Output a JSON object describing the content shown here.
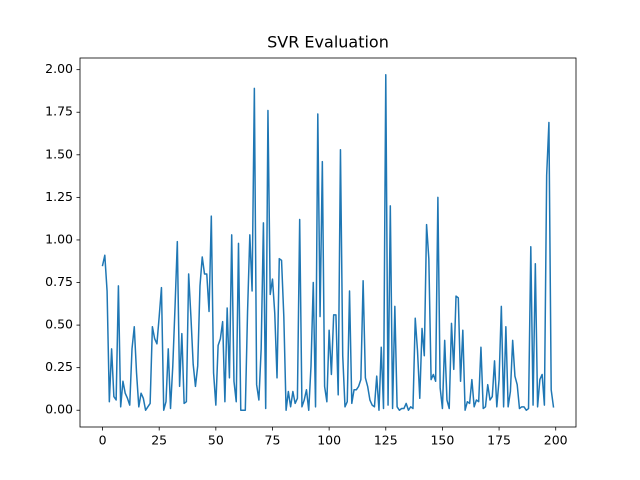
{
  "chart_data": {
    "type": "line",
    "title": "SVR Evaluation",
    "x": [
      0,
      1,
      2,
      3,
      4,
      5,
      6,
      7,
      8,
      9,
      10,
      11,
      12,
      13,
      14,
      15,
      16,
      17,
      18,
      19,
      20,
      21,
      22,
      23,
      24,
      25,
      26,
      27,
      28,
      29,
      30,
      31,
      32,
      33,
      34,
      35,
      36,
      37,
      38,
      39,
      40,
      41,
      42,
      43,
      44,
      45,
      46,
      47,
      48,
      49,
      50,
      51,
      52,
      53,
      54,
      55,
      56,
      57,
      58,
      59,
      60,
      61,
      62,
      63,
      64,
      65,
      66,
      67,
      68,
      69,
      70,
      71,
      72,
      73,
      74,
      75,
      76,
      77,
      78,
      79,
      80,
      81,
      82,
      83,
      84,
      85,
      86,
      87,
      88,
      89,
      90,
      91,
      92,
      93,
      94,
      95,
      96,
      97,
      98,
      99,
      100,
      101,
      102,
      103,
      104,
      105,
      106,
      107,
      108,
      109,
      110,
      111,
      112,
      113,
      114,
      115,
      116,
      117,
      118,
      119,
      120,
      121,
      122,
      123,
      124,
      125,
      126,
      127,
      128,
      129,
      130,
      131,
      132,
      133,
      134,
      135,
      136,
      137,
      138,
      139,
      140,
      141,
      142,
      143,
      144,
      145,
      146,
      147,
      148,
      149,
      150,
      151,
      152,
      153,
      154,
      155,
      156,
      157,
      158,
      159,
      160,
      161,
      162,
      163,
      164,
      165,
      166,
      167,
      168,
      169,
      170,
      171,
      172,
      173,
      174,
      175,
      176,
      177,
      178,
      179,
      180,
      181,
      182,
      183,
      184,
      185,
      186,
      187,
      188,
      189,
      190,
      191,
      192,
      193,
      194,
      195,
      196,
      197,
      198,
      199
    ],
    "series": [
      {
        "color": "#1f77b4",
        "values": [
          0.85,
          0.91,
          0.7,
          0.05,
          0.36,
          0.08,
          0.06,
          0.73,
          0.02,
          0.17,
          0.1,
          0.07,
          0.03,
          0.36,
          0.49,
          0.22,
          0.02,
          0.1,
          0.07,
          0.0,
          0.02,
          0.04,
          0.49,
          0.42,
          0.39,
          0.55,
          0.72,
          0.0,
          0.05,
          0.36,
          0.01,
          0.26,
          0.61,
          0.99,
          0.14,
          0.45,
          0.04,
          0.05,
          0.8,
          0.55,
          0.27,
          0.14,
          0.26,
          0.73,
          0.9,
          0.8,
          0.8,
          0.58,
          1.14,
          0.22,
          0.03,
          0.38,
          0.42,
          0.52,
          0.05,
          0.6,
          0.19,
          1.03,
          0.17,
          0.05,
          0.98,
          0.0,
          0.0,
          0.0,
          0.58,
          1.03,
          0.7,
          1.89,
          0.15,
          0.06,
          0.36,
          1.1,
          0.01,
          1.76,
          0.68,
          0.77,
          0.57,
          0.19,
          0.89,
          0.88,
          0.55,
          0.0,
          0.11,
          0.02,
          0.11,
          0.04,
          0.07,
          1.12,
          0.02,
          0.06,
          0.12,
          0.0,
          0.26,
          0.75,
          0.02,
          1.74,
          0.55,
          1.46,
          0.14,
          0.05,
          0.47,
          0.21,
          0.56,
          0.56,
          0.09,
          1.53,
          0.32,
          0.02,
          0.05,
          0.7,
          0.04,
          0.12,
          0.12,
          0.14,
          0.18,
          0.76,
          0.19,
          0.14,
          0.06,
          0.03,
          0.02,
          0.2,
          0.0,
          0.37,
          0.01,
          1.97,
          0.03,
          1.2,
          0.01,
          0.61,
          0.02,
          0.0,
          0.01,
          0.01,
          0.04,
          0.0,
          0.02,
          0.01,
          0.54,
          0.35,
          0.07,
          0.48,
          0.32,
          1.09,
          0.89,
          0.18,
          0.21,
          0.17,
          1.25,
          0.13,
          0.01,
          0.41,
          0.06,
          0.01,
          0.51,
          0.24,
          0.67,
          0.66,
          0.17,
          0.47,
          0.0,
          0.05,
          0.04,
          0.18,
          0.02,
          0.06,
          0.05,
          0.37,
          0.01,
          0.02,
          0.15,
          0.06,
          0.08,
          0.29,
          0.02,
          0.18,
          0.61,
          0.02,
          0.49,
          0.02,
          0.11,
          0.41,
          0.2,
          0.15,
          0.01,
          0.02,
          0.02,
          0.0,
          0.01,
          0.96,
          0.03,
          0.86,
          0.02,
          0.18,
          0.21,
          0.03,
          1.38,
          1.69,
          0.12,
          0.02
        ]
      }
    ],
    "xlim": [
      -9.95,
      208.95
    ],
    "xticks": [
      0,
      25,
      50,
      75,
      100,
      125,
      150,
      175,
      200
    ],
    "ylim": [
      -0.0985,
      2.0685
    ],
    "yticks": [
      {
        "value": 0,
        "label": "0.00"
      },
      {
        "value": 0.25,
        "label": "0.25"
      },
      {
        "value": 0.5,
        "label": "0.50"
      },
      {
        "value": 0.75,
        "label": "0.75"
      },
      {
        "value": 1,
        "label": "1.00"
      },
      {
        "value": 1.25,
        "label": "1.25"
      },
      {
        "value": 1.5,
        "label": "1.50"
      },
      {
        "value": 1.75,
        "label": "1.75"
      },
      {
        "value": 2,
        "label": "2.00"
      }
    ],
    "grid": false
  }
}
